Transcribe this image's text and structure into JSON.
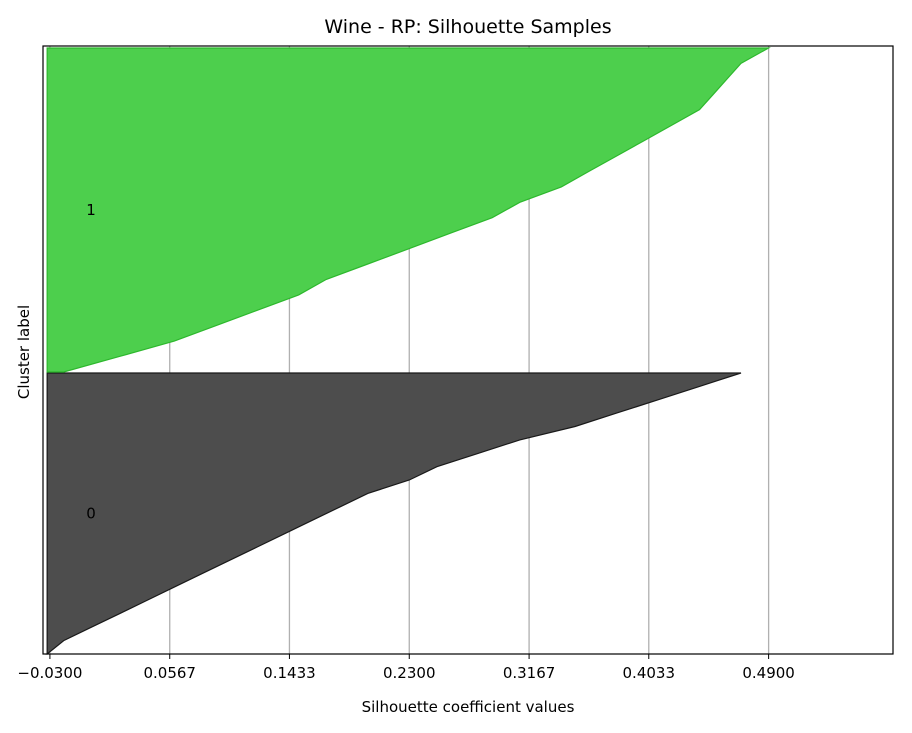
{
  "chart_data": {
    "type": "area",
    "title": "Wine - RP: Silhouette Samples",
    "xlabel": "Silhouette coefficient values",
    "ylabel": "Cluster label",
    "xlim": [
      -0.035,
      0.58
    ],
    "x_ticks": [
      "-0.0300",
      "0.0567",
      "0.1433",
      "0.2300",
      "0.3167",
      "0.4033",
      "0.4900"
    ],
    "x_tick_values": [
      -0.03,
      0.0567,
      0.1433,
      0.23,
      0.3167,
      0.4033,
      0.49
    ],
    "grid": "vertical",
    "clusters": [
      {
        "label": "0",
        "color": "#4d4d4d",
        "edge_color": "#1a1a1a",
        "sorted_values": [
          -0.032,
          -0.02,
          0.0,
          0.02,
          0.04,
          0.06,
          0.08,
          0.1,
          0.12,
          0.14,
          0.16,
          0.18,
          0.2,
          0.23,
          0.25,
          0.28,
          0.31,
          0.35,
          0.38,
          0.41,
          0.44,
          0.47
        ]
      },
      {
        "label": "1",
        "color": "#4dcf4d",
        "edge_color": "#2db82d",
        "sorted_values": [
          -0.02,
          0.02,
          0.06,
          0.09,
          0.12,
          0.15,
          0.17,
          0.2,
          0.23,
          0.26,
          0.29,
          0.31,
          0.34,
          0.36,
          0.38,
          0.4,
          0.42,
          0.44,
          0.45,
          0.46,
          0.47,
          0.49
        ]
      }
    ]
  }
}
